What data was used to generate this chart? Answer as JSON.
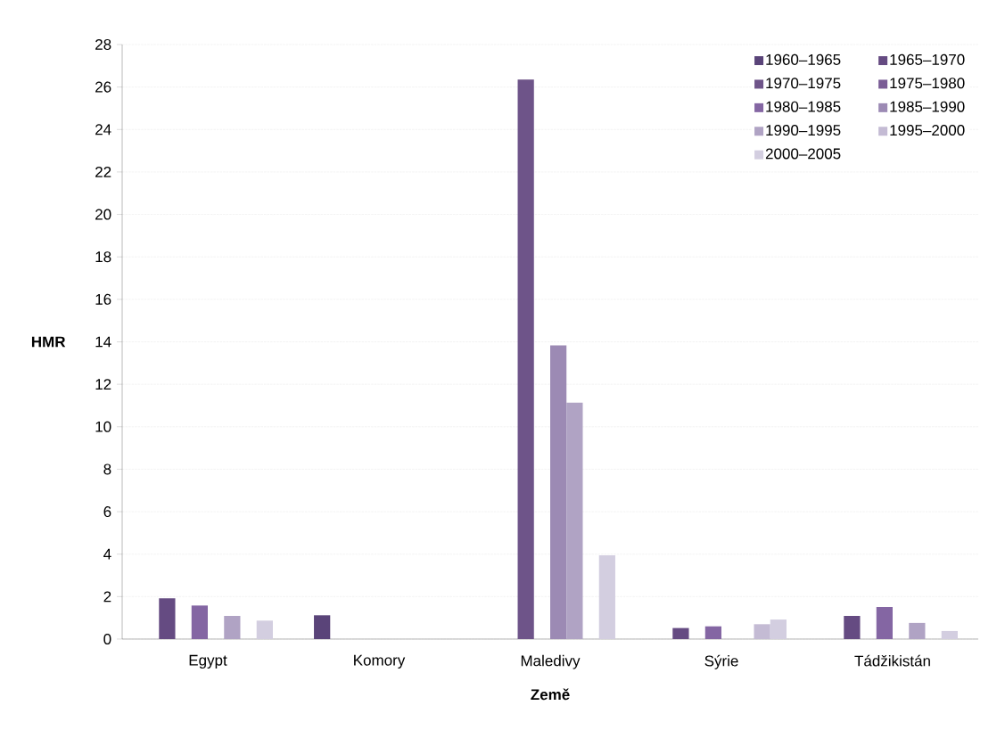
{
  "chart_data": {
    "type": "bar",
    "xlabel": "Země",
    "ylabel": "HMR",
    "categories": [
      "Egypt",
      "Komory",
      "Maledivy",
      "Sýrie",
      "Tádžikistán"
    ],
    "series": [
      {
        "name": "1960–1965",
        "color": "#5a4479",
        "values": [
          null,
          1.12,
          null,
          null,
          null
        ]
      },
      {
        "name": "1965–1970",
        "color": "#654b82",
        "values": [
          1.92,
          null,
          null,
          0.52,
          1.09
        ]
      },
      {
        "name": "1970–1975",
        "color": "#6e5489",
        "values": [
          null,
          null,
          26.35,
          null,
          null
        ]
      },
      {
        "name": "1975–1980",
        "color": "#7a5c96",
        "values": [
          null,
          null,
          null,
          null,
          null
        ]
      },
      {
        "name": "1980–1985",
        "color": "#8466a3",
        "values": [
          1.58,
          null,
          null,
          0.6,
          1.51
        ]
      },
      {
        "name": "1985–1990",
        "color": "#9c8ab4",
        "values": [
          null,
          null,
          13.83,
          null,
          null
        ]
      },
      {
        "name": "1990–1995",
        "color": "#b0a3c4",
        "values": [
          1.09,
          null,
          11.13,
          null,
          0.76
        ]
      },
      {
        "name": "1995–2000",
        "color": "#c4bbd4",
        "values": [
          null,
          null,
          null,
          0.7,
          null
        ]
      },
      {
        "name": "2000–2005",
        "color": "#d3cee0",
        "values": [
          0.87,
          null,
          3.95,
          0.92,
          0.38
        ]
      }
    ],
    "ylim": [
      0,
      28
    ],
    "yticks": [
      0,
      2,
      4,
      6,
      8,
      10,
      12,
      14,
      16,
      18,
      20,
      22,
      24,
      26,
      28
    ],
    "grid": "y",
    "legend": "top right"
  }
}
